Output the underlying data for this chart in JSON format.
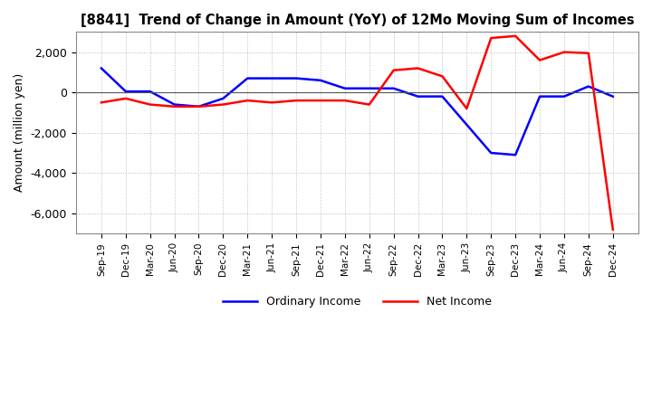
{
  "title": "[8841]  Trend of Change in Amount (YoY) of 12Mo Moving Sum of Incomes",
  "ylabel": "Amount (million yen)",
  "ylim": [
    -7000,
    3000
  ],
  "yticks": [
    2000,
    0,
    -2000,
    -4000,
    -6000
  ],
  "background_color": "#ffffff",
  "grid_color": "#bbbbbb",
  "ordinary_income_color": "#0000ff",
  "net_income_color": "#ff0000",
  "x_labels": [
    "Sep-19",
    "Dec-19",
    "Mar-20",
    "Jun-20",
    "Sep-20",
    "Dec-20",
    "Mar-21",
    "Jun-21",
    "Sep-21",
    "Dec-21",
    "Mar-22",
    "Jun-22",
    "Sep-22",
    "Dec-22",
    "Mar-23",
    "Jun-23",
    "Sep-23",
    "Dec-23",
    "Mar-24",
    "Jun-24",
    "Sep-24",
    "Dec-24"
  ],
  "ordinary_income": [
    1200,
    50,
    50,
    -600,
    -700,
    -300,
    700,
    700,
    700,
    600,
    200,
    200,
    200,
    -200,
    -200,
    -1600,
    -3000,
    -3100,
    -200,
    -200,
    300,
    -200
  ],
  "net_income": [
    -500,
    -300,
    -600,
    -700,
    -700,
    -600,
    -400,
    -500,
    -400,
    -400,
    -400,
    -600,
    1100,
    1200,
    800,
    -800,
    2700,
    2800,
    1600,
    2000,
    1950,
    -6800
  ]
}
